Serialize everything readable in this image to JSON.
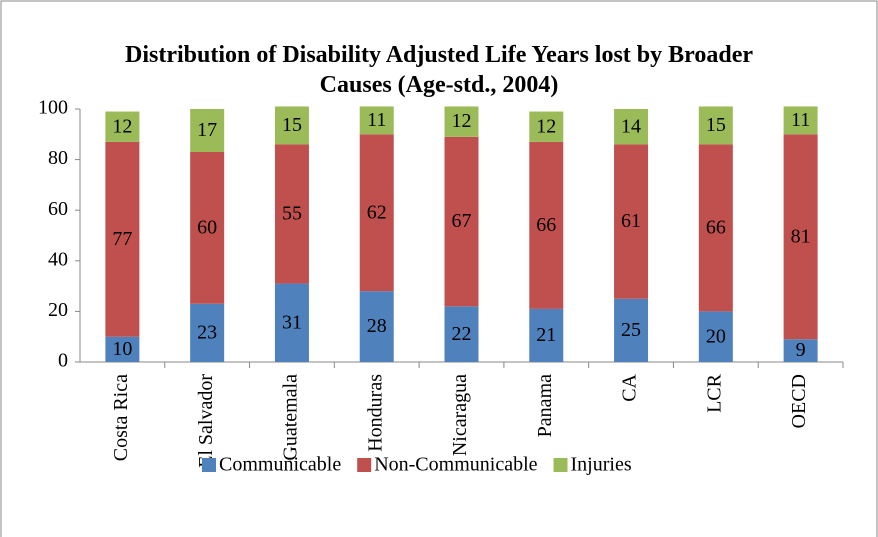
{
  "chart_data": {
    "type": "stacked_bar",
    "title": "Distribution of Disability Adjusted Life Years lost by Broader Causes (Age-std., 2004)",
    "categories": [
      "Costa Rica",
      "El Salvador",
      "Guatemala",
      "Honduras",
      "Nicaragua",
      "Panama",
      "CA",
      "LCR",
      "OECD"
    ],
    "series": [
      {
        "name": "Communicable",
        "color": "#4f81bd",
        "values": [
          10,
          23,
          31,
          28,
          22,
          21,
          25,
          20,
          9
        ]
      },
      {
        "name": "Non-Communicable",
        "color": "#c0504d",
        "values": [
          77,
          60,
          55,
          62,
          67,
          66,
          61,
          66,
          81
        ]
      },
      {
        "name": "Injuries",
        "color": "#9bbb59",
        "values": [
          12,
          17,
          15,
          11,
          12,
          12,
          14,
          15,
          11
        ]
      }
    ],
    "ylim": [
      0,
      100
    ],
    "yticks": [
      0,
      20,
      40,
      60,
      80,
      100
    ],
    "grid": false,
    "legend": "bottom"
  }
}
